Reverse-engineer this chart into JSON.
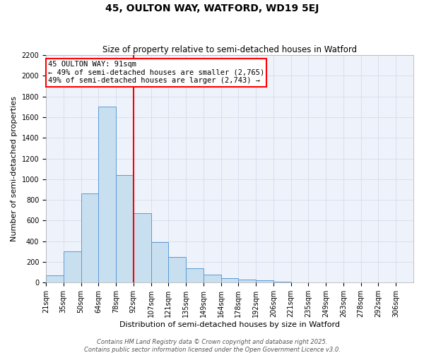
{
  "title": "45, OULTON WAY, WATFORD, WD19 5EJ",
  "subtitle": "Size of property relative to semi-detached houses in Watford",
  "xlabel": "Distribution of semi-detached houses by size in Watford",
  "ylabel": "Number of semi-detached properties",
  "bar_labels": [
    "21sqm",
    "35sqm",
    "50sqm",
    "64sqm",
    "78sqm",
    "92sqm",
    "107sqm",
    "121sqm",
    "135sqm",
    "149sqm",
    "164sqm",
    "178sqm",
    "192sqm",
    "206sqm",
    "221sqm",
    "235sqm",
    "249sqm",
    "263sqm",
    "278sqm",
    "292sqm",
    "306sqm"
  ],
  "bar_values": [
    70,
    305,
    860,
    1700,
    1040,
    670,
    395,
    245,
    140,
    80,
    45,
    30,
    20,
    10,
    5,
    5,
    3,
    2,
    2,
    1,
    1
  ],
  "bar_color": "#c8dff0",
  "bar_edge_color": "#5b9bd5",
  "background_color": "#eef2fb",
  "grid_color": "#d0d8e8",
  "vline_color": "red",
  "vline_position": 5,
  "annotation_title": "45 OULTON WAY: 91sqm",
  "annotation_line1": "← 49% of semi-detached houses are smaller (2,765)",
  "annotation_line2": "49% of semi-detached houses are larger (2,743) →",
  "ylim": [
    0,
    2200
  ],
  "yticks": [
    0,
    200,
    400,
    600,
    800,
    1000,
    1200,
    1400,
    1600,
    1800,
    2000,
    2200
  ],
  "footer1": "Contains HM Land Registry data © Crown copyright and database right 2025.",
  "footer2": "Contains public sector information licensed under the Open Government Licence v3.0.",
  "title_fontsize": 10,
  "subtitle_fontsize": 8.5,
  "annotation_fontsize": 7.5,
  "axis_label_fontsize": 8,
  "tick_fontsize": 7,
  "footer_fontsize": 6
}
